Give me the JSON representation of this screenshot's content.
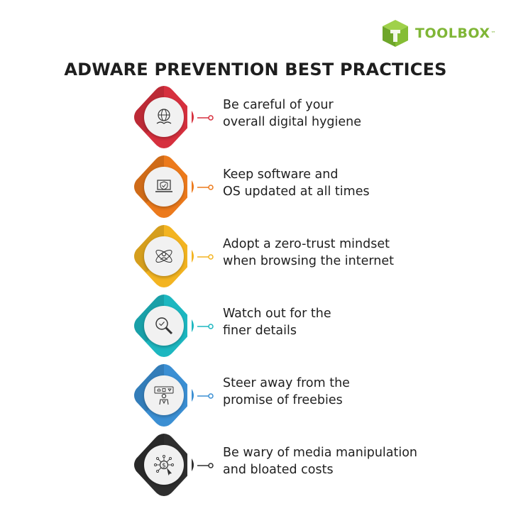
{
  "brand": {
    "name": "TOOLBOX",
    "trademark": "™",
    "color": "#7fb636"
  },
  "title": "ADWARE PREVENTION BEST PRACTICES",
  "items": [
    {
      "line1": "Be careful of your",
      "line2": "overall digital hygiene",
      "color": "#d6303e",
      "icon": "globe-hand-icon"
    },
    {
      "line1": "Keep software and",
      "line2": "OS updated at all times",
      "color": "#ec7a1c",
      "icon": "laptop-shield-icon"
    },
    {
      "line1": "Adopt a zero-trust mindset",
      "line2": "when browsing the internet",
      "color": "#f3b421",
      "icon": "user-orbit-icon"
    },
    {
      "line1": "Watch out for the",
      "line2": "finer details",
      "color": "#1db7c0",
      "icon": "magnifier-icon"
    },
    {
      "line1": "Steer away from the",
      "line2": "promise of freebies",
      "color": "#3b8fd3",
      "icon": "person-gifts-icon"
    },
    {
      "line1": "Be wary of media manipulation",
      "line2": "and bloated costs",
      "color": "#2f2f2f",
      "icon": "dollar-network-icon"
    }
  ]
}
